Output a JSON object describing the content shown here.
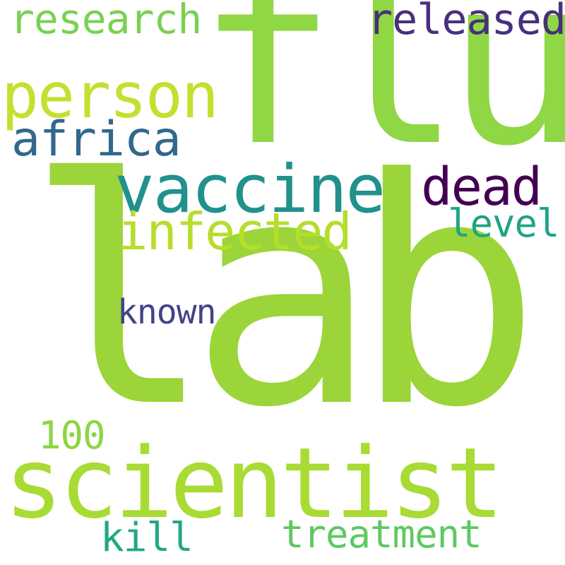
{
  "word_cloud": {
    "background_color": "#ffffff",
    "words": [
      {
        "id": "lab",
        "text": "lab",
        "color": "#9bd53a"
      },
      {
        "id": "flu",
        "text": "flu",
        "color": "#8fd744"
      },
      {
        "id": "scientist",
        "text": "scientist",
        "color": "#a8db34"
      },
      {
        "id": "vaccine",
        "text": "vaccine",
        "color": "#21918c"
      },
      {
        "id": "person",
        "text": "person",
        "color": "#c5df2f"
      },
      {
        "id": "infected",
        "text": "infected",
        "color": "#b5de2b"
      },
      {
        "id": "africa",
        "text": "africa",
        "color": "#31688e"
      },
      {
        "id": "dead",
        "text": "dead",
        "color": "#440154"
      },
      {
        "id": "released",
        "text": "released",
        "color": "#472f7d"
      },
      {
        "id": "research",
        "text": "research",
        "color": "#7ad151"
      },
      {
        "id": "treatment",
        "text": "treatment",
        "color": "#5ec962"
      },
      {
        "id": "level",
        "text": "level",
        "color": "#20a486"
      },
      {
        "id": "kill",
        "text": "kill",
        "color": "#22a884"
      },
      {
        "id": "100",
        "text": "100",
        "color": "#8bd646"
      },
      {
        "id": "known",
        "text": "known",
        "color": "#414487"
      }
    ]
  }
}
